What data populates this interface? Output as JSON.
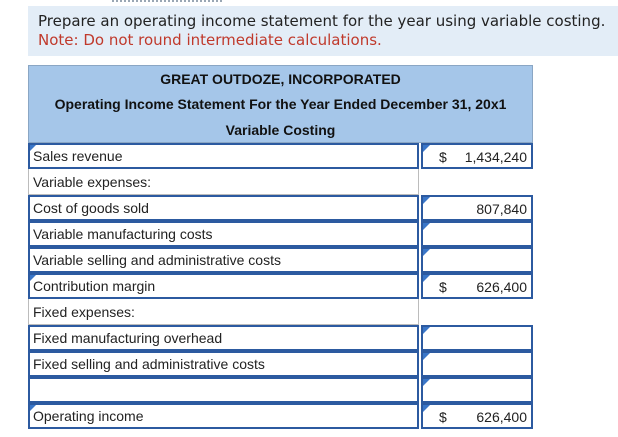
{
  "instructions": {
    "line1": "Prepare an operating income statement for the year using variable costing.",
    "line2": "Note: Do not round intermediate calculations."
  },
  "statement": {
    "company": "GREAT OUTDOZE, INCORPORATED",
    "title": "Operating Income Statement For the Year Ended December 31, 20x1",
    "method": "Variable Costing"
  },
  "rows": [
    {
      "label": "Sales revenue",
      "currency": "$",
      "value": "1,434,240"
    },
    {
      "label": "Variable expenses:",
      "currency": "",
      "value": ""
    },
    {
      "label": "Cost of goods sold",
      "currency": "",
      "value": "807,840"
    },
    {
      "label": "Variable manufacturing costs",
      "currency": "",
      "value": ""
    },
    {
      "label": "Variable selling and administrative costs",
      "currency": "",
      "value": ""
    },
    {
      "label": "Contribution margin",
      "currency": "$",
      "value": "626,400"
    },
    {
      "label": "Fixed expenses:",
      "currency": "",
      "value": ""
    },
    {
      "label": "Fixed manufacturing overhead",
      "currency": "",
      "value": ""
    },
    {
      "label": "Fixed selling and administrative costs",
      "currency": "",
      "value": ""
    },
    {
      "label": "",
      "currency": "",
      "value": ""
    },
    {
      "label": "Operating income",
      "currency": "$",
      "value": "626,400"
    }
  ],
  "colors": {
    "header_bg": "#a5c6e9",
    "input_border": "#2c5aa0",
    "note_red": "#c0392b",
    "instruction_bg": "#e3edf7"
  }
}
